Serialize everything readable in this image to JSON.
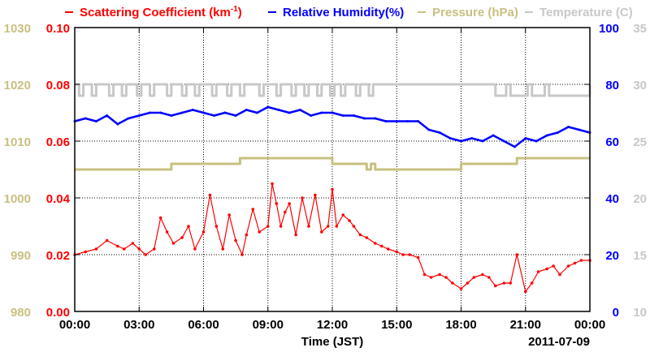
{
  "chart_data": {
    "type": "line",
    "x_axis": {
      "label": "Time (JST)",
      "date_label": "2011-07-09",
      "ticks": [
        "00:00",
        "03:00",
        "06:00",
        "09:00",
        "12:00",
        "15:00",
        "18:00",
        "21:00",
        "00:00"
      ],
      "range_hours": [
        0,
        24
      ]
    },
    "legend": {
      "scattering": "Scattering Coefficient (km",
      "scattering_sup": "-1",
      "scattering_close": ")",
      "humidity": "Relative Humidity(%)",
      "pressure": "Pressure (hPa)",
      "temperature": "Temperature (",
      "temperature_unit": "C)"
    },
    "axes": {
      "pressure": {
        "range": [
          980,
          1030
        ],
        "ticks": [
          "980",
          "990",
          "1000",
          "1010",
          "1020",
          "1030"
        ],
        "color": "#c8c080"
      },
      "scattering": {
        "range": [
          0,
          0.1
        ],
        "ticks": [
          "0.00",
          "0.02",
          "0.04",
          "0.06",
          "0.08",
          "0.10"
        ],
        "color": "#ff0000"
      },
      "humidity": {
        "range": [
          0,
          100
        ],
        "ticks": [
          "0",
          "20",
          "40",
          "60",
          "80",
          "100"
        ],
        "color": "#0000ff"
      },
      "temperature": {
        "range": [
          10,
          35
        ],
        "ticks": [
          "10",
          "15",
          "20",
          "25",
          "30",
          "35"
        ],
        "color": "#c8c8c8"
      }
    },
    "grid": true,
    "series": [
      {
        "name": "Scattering Coefficient",
        "color": "#ff0000",
        "axis": "scattering",
        "x": [
          0,
          0.5,
          1,
          1.5,
          2,
          2.3,
          2.7,
          3,
          3.3,
          3.7,
          4,
          4.3,
          4.6,
          5,
          5.3,
          5.6,
          6,
          6.3,
          6.6,
          6.9,
          7.2,
          7.5,
          7.8,
          8,
          8.3,
          8.6,
          9,
          9.2,
          9.4,
          9.6,
          9.8,
          10,
          10.3,
          10.6,
          10.9,
          11.2,
          11.5,
          11.8,
          12,
          12.2,
          12.5,
          12.8,
          13,
          13.3,
          13.6,
          14,
          14.3,
          14.6,
          15,
          15.3,
          15.6,
          16,
          16.3,
          16.6,
          17,
          17.3,
          17.6,
          18,
          18.3,
          18.6,
          19,
          19.3,
          19.6,
          20,
          20.3,
          20.6,
          21,
          21.3,
          21.6,
          22,
          22.3,
          22.6,
          23,
          23.3,
          23.6,
          24
        ],
        "y": [
          0.02,
          0.021,
          0.022,
          0.025,
          0.023,
          0.022,
          0.024,
          0.022,
          0.02,
          0.022,
          0.033,
          0.028,
          0.024,
          0.026,
          0.03,
          0.022,
          0.028,
          0.041,
          0.03,
          0.022,
          0.034,
          0.025,
          0.02,
          0.027,
          0.036,
          0.028,
          0.03,
          0.045,
          0.038,
          0.03,
          0.035,
          0.038,
          0.027,
          0.04,
          0.03,
          0.041,
          0.028,
          0.03,
          0.043,
          0.03,
          0.034,
          0.032,
          0.03,
          0.027,
          0.026,
          0.024,
          0.023,
          0.022,
          0.021,
          0.02,
          0.02,
          0.019,
          0.013,
          0.012,
          0.013,
          0.012,
          0.01,
          0.008,
          0.01,
          0.012,
          0.013,
          0.012,
          0.009,
          0.01,
          0.01,
          0.02,
          0.007,
          0.01,
          0.014,
          0.015,
          0.016,
          0.013,
          0.016,
          0.017,
          0.018,
          0.018
        ]
      },
      {
        "name": "Relative Humidity",
        "color": "#0000ff",
        "axis": "humidity",
        "x": [
          0,
          0.5,
          1,
          1.5,
          2,
          2.5,
          3,
          3.5,
          4,
          4.5,
          5,
          5.5,
          6,
          6.5,
          7,
          7.5,
          8,
          8.5,
          9,
          9.5,
          10,
          10.5,
          11,
          11.5,
          12,
          12.5,
          13,
          13.5,
          14,
          14.5,
          15,
          15.5,
          16,
          16.5,
          17,
          17.5,
          18,
          18.5,
          19,
          19.5,
          20,
          20.5,
          21,
          21.5,
          22,
          22.5,
          23,
          23.5,
          24
        ],
        "y": [
          67,
          68,
          67,
          69,
          66,
          68,
          69,
          70,
          70,
          69,
          70,
          71,
          70,
          69,
          70,
          69,
          71,
          70,
          72,
          71,
          70,
          71,
          69,
          70,
          70,
          69,
          69,
          68,
          68,
          67,
          67,
          67,
          67,
          64,
          63,
          61,
          60,
          61,
          60,
          62,
          60,
          58,
          61,
          60,
          62,
          63,
          65,
          64,
          63
        ]
      },
      {
        "name": "Pressure",
        "color": "#c8c080",
        "axis": "pressure",
        "x": [
          0,
          4.4,
          4.5,
          7.6,
          7.7,
          11.9,
          12,
          13.5,
          13.6,
          13.8,
          14,
          17.8,
          18,
          20.5,
          20.6,
          24
        ],
        "y": [
          1005,
          1005,
          1006,
          1006,
          1007,
          1007,
          1006,
          1006,
          1005,
          1006,
          1005,
          1005,
          1006,
          1006,
          1007,
          1007
        ]
      },
      {
        "name": "Temperature",
        "color": "#c8c8c8",
        "axis": "temperature",
        "x": [
          0,
          0.2,
          0.4,
          0.8,
          1.0,
          1.6,
          1.8,
          2.2,
          2.4,
          2.9,
          3.1,
          3.5,
          3.7,
          4.3,
          4.5,
          5.0,
          5.2,
          5.6,
          5.8,
          6.4,
          6.6,
          7.1,
          7.3,
          7.7,
          7.9,
          8.6,
          8.8,
          9.4,
          9.6,
          10.1,
          10.3,
          10.7,
          10.9,
          11.3,
          11.5,
          11.9,
          12.1,
          12.4,
          12.6,
          13.1,
          13.3,
          13.7,
          13.9,
          19.4,
          19.6,
          20.1,
          20.3,
          21.1,
          21.3,
          21.9,
          22.1,
          24
        ],
        "y": [
          30,
          29,
          30,
          29,
          30,
          29,
          30,
          29,
          30,
          29,
          30,
          29,
          30,
          29,
          30,
          29,
          30,
          29,
          30,
          29,
          30,
          29,
          30,
          29,
          30,
          29,
          30,
          29,
          30,
          29,
          30,
          29,
          30,
          29,
          30,
          29,
          30,
          29,
          30,
          29,
          30,
          29,
          30,
          30,
          29,
          30,
          29,
          30,
          29,
          30,
          29,
          30
        ]
      }
    ]
  }
}
